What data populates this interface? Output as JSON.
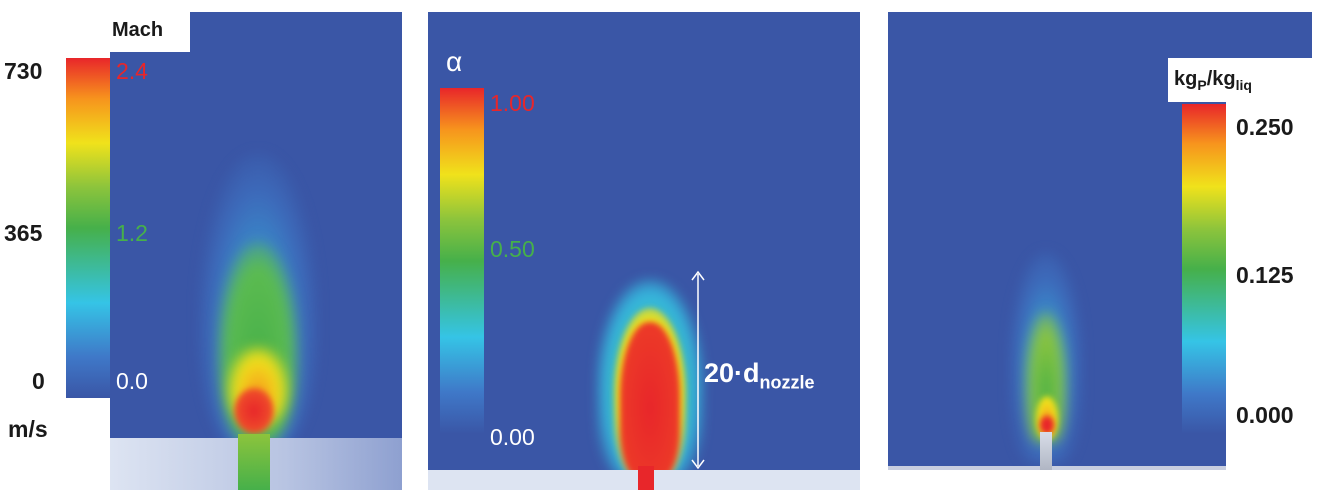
{
  "panel1": {
    "unit_top": "Mach",
    "unit_bottom": "m/s",
    "left_ticks": [
      "730",
      "365",
      "0"
    ],
    "right_ticks": [
      "2.4",
      "1.2",
      "0.0"
    ]
  },
  "panel2": {
    "symbol": "α",
    "ticks": [
      "1.00",
      "0.50",
      "0.00"
    ],
    "annotation_main": "20·d",
    "annotation_sub": "nozzle"
  },
  "panel3": {
    "unit_main1": "kg",
    "unit_sub1": "P",
    "unit_slash": "/kg",
    "unit_sub2": "liq",
    "ticks": [
      "0.250",
      "0.125",
      "0.000"
    ]
  },
  "colors": {
    "background_field": "#3a56a6",
    "colormap": [
      "#3a56a6",
      "#35c4e6",
      "#46b04a",
      "#f0e21b",
      "#f7941d",
      "#e8262a"
    ]
  }
}
